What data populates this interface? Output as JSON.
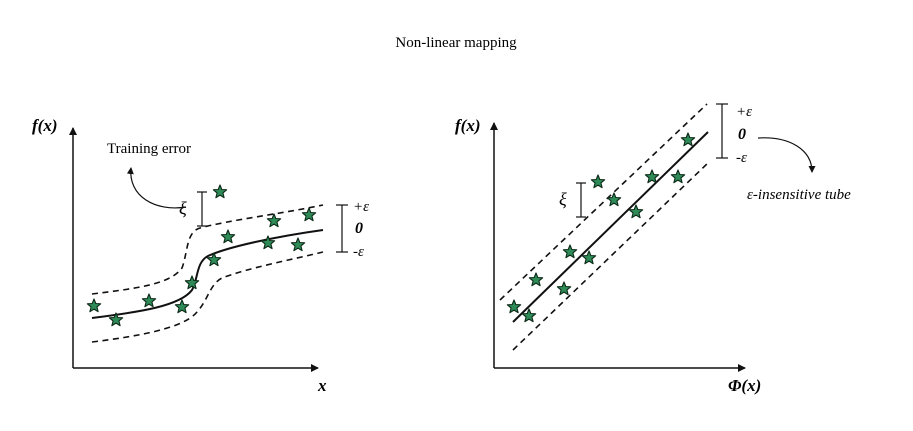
{
  "title": "Non-linear mapping",
  "left_panel": {
    "y_axis_label": "f(x)",
    "x_axis_label": "x",
    "training_error_label": "Training error",
    "xi_symbol": "ξ",
    "plus_epsilon": "+ε",
    "zero": "0",
    "minus_epsilon": "-ε"
  },
  "right_panel": {
    "y_axis_label": "f(x)",
    "x_axis_label": "Φ(x)",
    "tube_label": "ε-insensitive tube",
    "xi_symbol": "ξ",
    "plus_epsilon": "+ε",
    "zero": "0",
    "minus_epsilon": "-ε"
  },
  "colors": {
    "star_fill": "#2e8b57",
    "line": "#111111",
    "background": "#ffffff"
  }
}
